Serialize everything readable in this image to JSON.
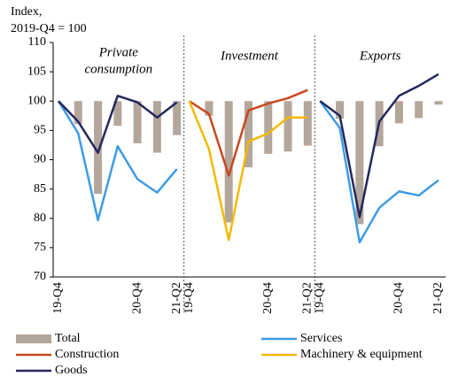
{
  "chart_data": {
    "type": "bar_line",
    "ylabel": [
      "Index,",
      "2019-Q4 = 100"
    ],
    "ylim": [
      70,
      110
    ],
    "yticks": [
      70,
      75,
      80,
      85,
      90,
      95,
      100,
      105,
      110
    ],
    "bar_base": 100,
    "categories": [
      "19-Q4",
      null,
      null,
      null,
      "20-Q4",
      null,
      "21-Q2"
    ],
    "series": [
      {
        "name": "Total",
        "color": "#b3a69b",
        "kind": "bar"
      },
      {
        "name": "Services",
        "color": "#3d9be6",
        "kind": "line"
      },
      {
        "name": "Construction",
        "color": "#c8471f",
        "kind": "line"
      },
      {
        "name": "Machinery & equipment",
        "color": "#f5b800",
        "kind": "line"
      },
      {
        "name": "Goods",
        "color": "#24275c",
        "kind": "line"
      }
    ],
    "panels": [
      {
        "title": [
          "Private",
          "consumption"
        ],
        "values": [
          [
            100,
            96.1,
            84.2,
            95.8,
            92.8,
            91.2,
            94.2
          ],
          [
            100,
            94.5,
            79.7,
            92.3,
            86.7,
            84.4,
            88.4
          ],
          null,
          null,
          [
            100,
            96.5,
            91.2,
            100.9,
            99.8,
            97.2,
            99.8
          ]
        ]
      },
      {
        "title": [
          "Investment"
        ],
        "values": [
          [
            100,
            97.5,
            79.3,
            88.7,
            91.0,
            91.4,
            92.4
          ],
          null,
          [
            100,
            97.8,
            87.3,
            98.4,
            99.6,
            100.5,
            101.9
          ],
          [
            100,
            91.8,
            76.3,
            93.1,
            94.5,
            97.2,
            97.2
          ],
          null
        ]
      },
      {
        "title": [
          "Exports"
        ],
        "values": [
          [
            100,
            97.0,
            79.0,
            92.3,
            96.2,
            97.1,
            99.4
          ],
          [
            100,
            95.4,
            75.9,
            81.8,
            84.6,
            83.9,
            86.5
          ],
          null,
          null,
          [
            100,
            97.5,
            80.2,
            96.5,
            100.9,
            102.6,
            104.6
          ]
        ]
      }
    ]
  }
}
